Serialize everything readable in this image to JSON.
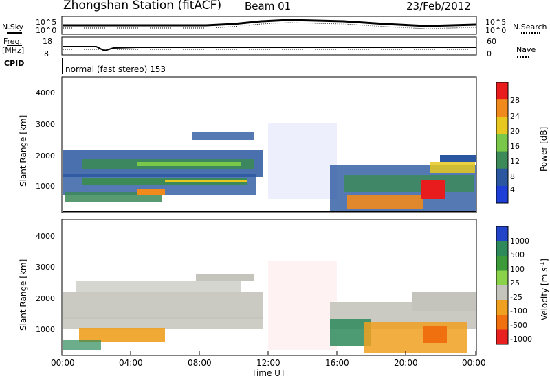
{
  "header": {
    "station_title": "Zhongshan Station (fitACF)",
    "beam_label": "Beam 01",
    "date_label": "23/Feb/2012"
  },
  "noise_panel": {
    "left_label": "N.Sky",
    "right_label": "N.Search",
    "left_ticks": [
      "10^5",
      "10^0"
    ],
    "right_ticks": [
      "10^5",
      "10^0"
    ]
  },
  "freq_panel": {
    "left_label_line1": "Freq.",
    "left_label_line2": "[MHz]",
    "right_label": "Nave",
    "left_ticks": [
      "18",
      "8"
    ],
    "right_ticks": [
      "60",
      "0"
    ]
  },
  "cpid_panel": {
    "label": "CPID",
    "mode_text": "normal (fast stereo) 153"
  },
  "chart_data": [
    {
      "type": "heatmap",
      "name": "power-panel",
      "ylabel": "Slant Range [km]",
      "ylim": [
        180,
        4600
      ],
      "yticks": [
        "1000",
        "2000",
        "3000",
        "4000"
      ],
      "colorbar_label": "Power [dB]",
      "colorbar_ticks": [
        "4",
        "8",
        "12",
        "16",
        "20",
        "24",
        "28"
      ],
      "colorbar_colors": [
        "#1d3fd8",
        "#2a57a0",
        "#3c8a58",
        "#7ac84a",
        "#e8c820",
        "#f08a1c",
        "#e81c1c"
      ]
    },
    {
      "type": "heatmap",
      "name": "velocity-panel",
      "ylabel": "Slant Range [km]",
      "ylim": [
        180,
        4600
      ],
      "yticks": [
        "1000",
        "2000",
        "3000",
        "4000"
      ],
      "colorbar_label": "Velocity [m s",
      "colorbar_label_sup": "-1",
      "colorbar_label_end": "]",
      "colorbar_ticks": [
        "1000",
        "500",
        "100",
        "25",
        "-25",
        "-100",
        "-500",
        "-1000"
      ],
      "colorbar_colors": [
        "#2244c8",
        "#2e8a5a",
        "#3c9a3a",
        "#8ad24a",
        "#c4c4bc",
        "#f0a020",
        "#f07010",
        "#e82020"
      ]
    }
  ],
  "time_axis": {
    "label": "Time UT",
    "ticks": [
      "00:00",
      "04:00",
      "08:00",
      "12:00",
      "16:00",
      "20:00",
      "00:00"
    ]
  }
}
